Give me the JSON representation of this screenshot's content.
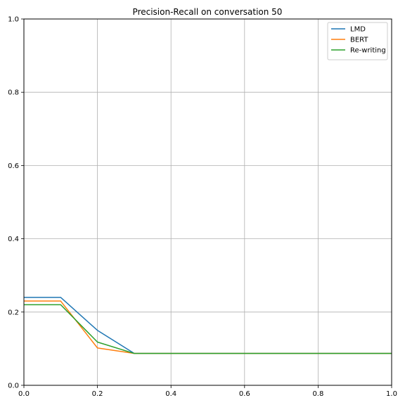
{
  "chart_data": {
    "type": "line",
    "title": "Precision-Recall on conversation 50",
    "xlabel": "",
    "ylabel": "",
    "xlim": [
      0.0,
      1.0
    ],
    "ylim": [
      0.0,
      1.0
    ],
    "grid": true,
    "legend_position": "top-right",
    "x": [
      0.0,
      0.1,
      0.2,
      0.3,
      0.4,
      0.5,
      0.6,
      0.7,
      0.8,
      0.9,
      1.0
    ],
    "x_ticks": [
      "0.0",
      "0.2",
      "0.4",
      "0.6",
      "0.8",
      "1.0"
    ],
    "y_ticks": [
      "0.0",
      "0.2",
      "0.4",
      "0.6",
      "0.8",
      "1.0"
    ],
    "series": [
      {
        "name": "LMD",
        "color": "#1f77b4",
        "values": [
          0.24,
          0.24,
          0.15,
          0.087,
          0.087,
          0.087,
          0.087,
          0.087,
          0.087,
          0.087,
          0.087
        ]
      },
      {
        "name": "BERT",
        "color": "#ff7f0e",
        "values": [
          0.23,
          0.23,
          0.102,
          0.087,
          0.087,
          0.087,
          0.087,
          0.087,
          0.087,
          0.087,
          0.087
        ]
      },
      {
        "name": "Re-writing",
        "color": "#2ca02c",
        "values": [
          0.22,
          0.22,
          0.118,
          0.087,
          0.087,
          0.087,
          0.087,
          0.087,
          0.087,
          0.087,
          0.087
        ]
      }
    ]
  }
}
